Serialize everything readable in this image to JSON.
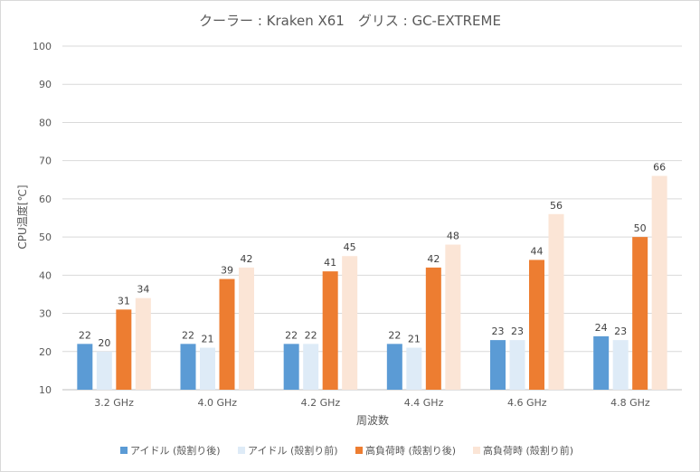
{
  "chart_data": {
    "type": "bar",
    "title": "クーラー : Kraken X61　グリス : GC-EXTREME",
    "xlabel": "周波数",
    "ylabel": "CPU温度[℃]",
    "ylim": [
      10,
      100
    ],
    "yticks": [
      10,
      20,
      30,
      40,
      50,
      60,
      70,
      80,
      90,
      100
    ],
    "grid": true,
    "legend_position": "bottom",
    "categories": [
      "3.2 GHz",
      "4.0 GHz",
      "4.2 GHz",
      "4.4 GHz",
      "4.6 GHz",
      "4.8 GHz"
    ],
    "series": [
      {
        "name": "アイドル (殻割り後)",
        "color": "#5b9bd5",
        "values": [
          22,
          22,
          22,
          22,
          23,
          24
        ]
      },
      {
        "name": "アイドル (殻割り前)",
        "color": "#deebf7",
        "values": [
          20,
          21,
          22,
          21,
          23,
          23
        ]
      },
      {
        "name": "高負荷時 (殻割り後)",
        "color": "#ed7d31",
        "values": [
          31,
          39,
          41,
          42,
          44,
          50
        ]
      },
      {
        "name": "高負荷時 (殻割り前)",
        "color": "#fbe5d6",
        "values": [
          34,
          42,
          45,
          48,
          56,
          66
        ]
      }
    ]
  }
}
